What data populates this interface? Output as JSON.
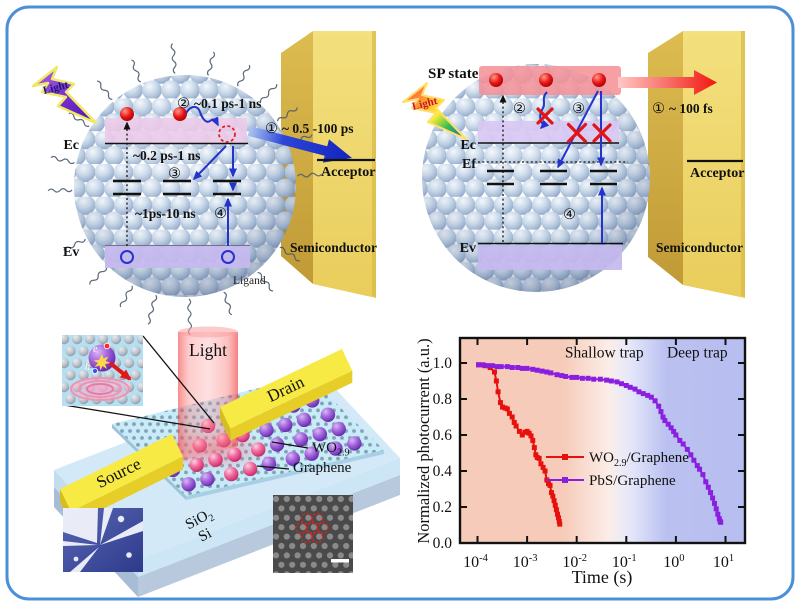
{
  "figure": {
    "border_color": "#4a90d8"
  },
  "panel_tl": {
    "light": "Light",
    "num1": "①",
    "num2": "②",
    "num3": "③",
    "num4": "④",
    "step1": "~ 0.5 -100 ps",
    "step2": "~0.1 ps-1 ns",
    "relax": "~0.2 ps-1 ns",
    "trap": "~1ps-10 ns",
    "ec": "Ec",
    "ev": "Ev",
    "ligand": "Ligand",
    "acceptor": "Acceptor",
    "semiconductor": "Semiconductor"
  },
  "panel_tr": {
    "sp_state": "SP state",
    "light": "Light",
    "num1": "①",
    "num2": "②",
    "num3": "③",
    "num4": "④",
    "step1": "~ 100 fs",
    "ec": "Ec",
    "ef": "Ef",
    "ev": "Ev",
    "acceptor": "Acceptor",
    "semiconductor": "Semiconductor"
  },
  "panel_device": {
    "light": "Light",
    "drain": "Drain",
    "source": "Source",
    "wo_pre": "WO",
    "wo_sub": "2.9",
    "graphene": "Graphene",
    "sio_pre": "SiO",
    "sio_sub": "2",
    "si": "Si",
    "electron": "e",
    "hole": "h"
  },
  "chart_data": {
    "type": "line",
    "xlabel": "Time (s)",
    "ylabel": "Normalized photocurrent (a.u.)",
    "xscale": "log",
    "xlim": [
      4.4e-05,
      24.5
    ],
    "ylim": [
      0,
      1.14
    ],
    "xtick_base": "10",
    "xtick_exponents": [
      -4,
      -3,
      -2,
      -1,
      0,
      1
    ],
    "ytick_labels": [
      "0.0",
      "0.2",
      "0.4",
      "0.6",
      "0.8",
      "1.0"
    ],
    "grid": false,
    "regions": [
      {
        "label": "Shallow trap",
        "color": "#f6cbba"
      },
      {
        "label": "Deep trap",
        "color": "#b7bef0"
      }
    ],
    "annotations": [
      {
        "text": "Shallow trap",
        "t": 0.036,
        "v": 1.03
      },
      {
        "text": "Deep trap",
        "t": 2.7,
        "v": 1.03
      }
    ],
    "series": [
      {
        "name_pre": "WO",
        "name_sub": "2.9",
        "name_post": "/Graphene",
        "color": "#e8100c",
        "marker": "square",
        "x": [
          0.000105,
          0.00014,
          0.00018,
          0.00022,
          0.00024,
          0.00026,
          0.00029,
          0.00032,
          0.00036,
          0.0004,
          0.00044,
          0.0005,
          0.00055,
          0.0006,
          0.0007,
          0.0008,
          0.0009,
          0.001,
          0.0011,
          0.0012,
          0.0013,
          0.0014,
          0.0015,
          0.0016,
          0.00175,
          0.0019,
          0.0021,
          0.0023,
          0.0025,
          0.0027,
          0.0029,
          0.0031,
          0.0033,
          0.0035,
          0.0037,
          0.0039,
          0.0041,
          0.0043,
          0.00445,
          0.00455
        ],
        "y": [
          0.99,
          0.985,
          0.975,
          0.95,
          0.9,
          0.84,
          0.78,
          0.755,
          0.75,
          0.745,
          0.72,
          0.7,
          0.67,
          0.65,
          0.62,
          0.6,
          0.615,
          0.62,
          0.61,
          0.595,
          0.57,
          0.53,
          0.49,
          0.475,
          0.47,
          0.44,
          0.42,
          0.4,
          0.35,
          0.33,
          0.32,
          0.28,
          0.26,
          0.235,
          0.21,
          0.185,
          0.16,
          0.14,
          0.12,
          0.105
        ]
      },
      {
        "name_pre": "PbS/Graphene",
        "name_sub": "",
        "name_post": "",
        "color": "#8a1fe0",
        "marker": "square",
        "x": [
          0.000105,
          0.00013,
          0.00016,
          0.0002,
          0.00025,
          0.0003,
          0.0004,
          0.0005,
          0.00065,
          0.0008,
          0.001,
          0.0013,
          0.0016,
          0.002,
          0.0025,
          0.003,
          0.004,
          0.005,
          0.006,
          0.008,
          0.01,
          0.013,
          0.017,
          0.022,
          0.03,
          0.04,
          0.05,
          0.065,
          0.08,
          0.1,
          0.12,
          0.15,
          0.18,
          0.22,
          0.27,
          0.32,
          0.38,
          0.45,
          0.5,
          0.55,
          0.6,
          0.7,
          0.8,
          0.9,
          1.0,
          1.2,
          1.4,
          1.7,
          2.0,
          2.3,
          2.7,
          3.0,
          3.5,
          4.0,
          4.5,
          5.0,
          5.5,
          6.0,
          6.5,
          7.0,
          7.5,
          7.8,
          8.0
        ],
        "y": [
          0.99,
          0.99,
          0.985,
          0.985,
          0.98,
          0.98,
          0.98,
          0.975,
          0.975,
          0.97,
          0.97,
          0.965,
          0.96,
          0.955,
          0.95,
          0.945,
          0.935,
          0.93,
          0.925,
          0.92,
          0.92,
          0.915,
          0.915,
          0.91,
          0.91,
          0.905,
          0.9,
          0.895,
          0.885,
          0.875,
          0.865,
          0.855,
          0.84,
          0.83,
          0.82,
          0.81,
          0.79,
          0.76,
          0.73,
          0.7,
          0.68,
          0.66,
          0.64,
          0.62,
          0.6,
          0.57,
          0.55,
          0.52,
          0.49,
          0.46,
          0.43,
          0.41,
          0.38,
          0.34,
          0.31,
          0.28,
          0.25,
          0.22,
          0.19,
          0.16,
          0.135,
          0.12,
          0.115
        ]
      }
    ]
  }
}
